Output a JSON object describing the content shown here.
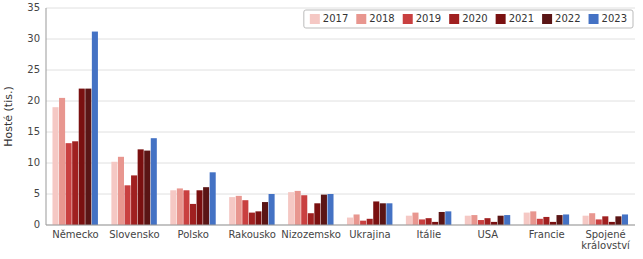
{
  "chart_data": {
    "type": "bar",
    "y_label": "Hosté (tis.)",
    "categories": [
      "Německo",
      "Slovensko",
      "Polsko",
      "Rakousko",
      "Nizozemsko",
      "Ukrajina",
      "Itálie",
      "USA",
      "Francie",
      "Spojené\nkrálovství"
    ],
    "series": [
      {
        "name": "2017",
        "color": "#f5c8c4",
        "values": [
          19.0,
          10.2,
          5.6,
          4.5,
          5.3,
          1.2,
          1.5,
          1.5,
          2.0,
          1.5
        ]
      },
      {
        "name": "2018",
        "color": "#e8968f",
        "values": [
          20.5,
          11.0,
          5.9,
          4.7,
          5.5,
          1.7,
          2.0,
          1.6,
          2.2,
          1.9
        ]
      },
      {
        "name": "2019",
        "color": "#c94040",
        "values": [
          13.2,
          6.4,
          5.6,
          4.0,
          4.8,
          0.7,
          0.9,
          0.8,
          1.0,
          0.9
        ]
      },
      {
        "name": "2020",
        "color": "#a02020",
        "values": [
          13.5,
          8.0,
          3.4,
          2.0,
          1.9,
          1.0,
          1.1,
          1.1,
          1.3,
          1.4
        ]
      },
      {
        "name": "2021",
        "color": "#7a1010",
        "values": [
          22.0,
          12.2,
          5.6,
          2.2,
          3.5,
          3.8,
          0.5,
          0.5,
          0.5,
          0.5
        ]
      },
      {
        "name": "2022",
        "color": "#5a1515",
        "values": [
          22.0,
          12.0,
          6.1,
          3.7,
          4.9,
          3.5,
          2.1,
          1.5,
          1.6,
          1.4
        ]
      },
      {
        "name": "2023",
        "color": "#4472c4",
        "values": [
          31.2,
          14.0,
          8.5,
          5.0,
          5.0,
          3.5,
          2.2,
          1.6,
          1.7,
          1.7
        ]
      }
    ],
    "ylim": [
      0,
      35
    ],
    "yticks": [
      0,
      5,
      10,
      15,
      20,
      25,
      30,
      35
    ],
    "grid": true,
    "legend": "upper right"
  }
}
